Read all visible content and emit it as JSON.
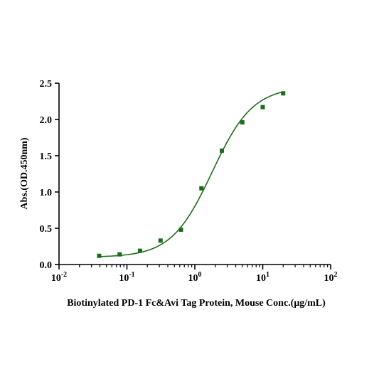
{
  "colors": {
    "series": "#1e6b1e",
    "axis": "#000000"
  },
  "chart_data": {
    "type": "scatter",
    "title": "",
    "xlabel": "Biotinylated PD-1 Fc&Avi Tag Protein, Mouse  Conc.(μg/mL)",
    "ylabel": "Abs.(OD.450nm)",
    "x_scale": "log",
    "xlim": [
      0.01,
      100
    ],
    "ylim": [
      0,
      2.5
    ],
    "x_ticks": [
      {
        "base": "10",
        "exp": "-2"
      },
      {
        "base": "10",
        "exp": "-1"
      },
      {
        "base": "10",
        "exp": "0"
      },
      {
        "base": "10",
        "exp": "1"
      },
      {
        "base": "10",
        "exp": "2"
      }
    ],
    "y_ticks": [
      "0.0",
      "0.5",
      "1.0",
      "1.5",
      "2.0",
      "2.5"
    ],
    "grid": false,
    "legend": "none",
    "marker": "square",
    "fit": "sigmoidal curve",
    "series": [
      {
        "x": [
          0.039,
          0.078,
          0.156,
          0.3125,
          0.625,
          1.25,
          2.5,
          5,
          10,
          20
        ],
        "y": [
          0.12,
          0.14,
          0.19,
          0.33,
          0.48,
          1.05,
          1.57,
          1.96,
          2.17,
          2.36
        ]
      }
    ]
  }
}
